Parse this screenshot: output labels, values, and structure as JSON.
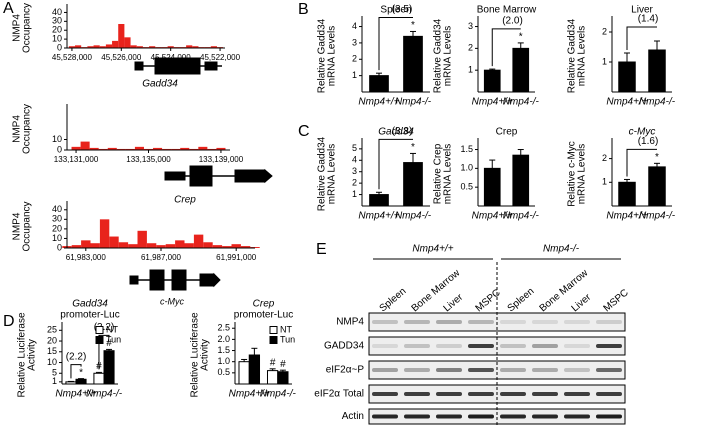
{
  "panel_labels": [
    "A",
    "B",
    "C",
    "D",
    "E"
  ],
  "genes": [
    "Gadd34",
    "Crep",
    "c-Myc"
  ],
  "chart_data": [
    {
      "type": "track",
      "ylabel": [
        "NMP4",
        "Occupancy"
      ],
      "x": [
        45528000,
        45527750,
        45527500,
        45527250,
        45527000,
        45526750,
        45526500,
        45526250,
        45526000,
        45525750,
        45525500,
        45525250,
        45525000,
        45524750,
        45524500,
        45524250,
        45524000,
        45523750,
        45523500,
        45523250,
        45523000,
        45522750,
        45522500,
        45522250,
        45522000
      ],
      "values": [
        2,
        3,
        1,
        2,
        3,
        2,
        4,
        8,
        27,
        12,
        3,
        2,
        1,
        2,
        1,
        1,
        2,
        1,
        1,
        3,
        2,
        1,
        1,
        2,
        1
      ],
      "color": "#e8231c",
      "xlim": [
        45528200,
        45521800
      ],
      "ylim": [
        0,
        45
      ],
      "yticks": [
        0,
        10,
        20,
        30,
        40
      ],
      "xticks": [
        {
          "value": 45528000,
          "label": "45,528,000"
        },
        {
          "value": 45526000,
          "label": "45,526,000"
        },
        {
          "value": 45524000,
          "label": "45,524,000"
        },
        {
          "value": 45522000,
          "label": "45,522,000"
        }
      ]
    },
    {
      "type": "track",
      "ylabel": [
        "NMP4",
        "Occupancy"
      ],
      "x": [
        133131000,
        133131500,
        133132000,
        133132500,
        133133000,
        133133500,
        133134000,
        133134500,
        133135000,
        133135500,
        133136000,
        133136500,
        133137000,
        133137500,
        133138000,
        133138500,
        133139000
      ],
      "values": [
        3,
        8,
        2,
        1,
        2,
        1,
        1,
        3,
        1,
        2,
        1,
        1,
        2,
        1,
        3,
        1,
        2
      ],
      "color": "#e8231c",
      "xlim": [
        133130500,
        133139500
      ],
      "ylim": [
        0,
        40
      ],
      "yticks": [
        0,
        10
      ],
      "xticks": [
        {
          "value": 133131000,
          "label": "133,131,000"
        },
        {
          "value": 133135000,
          "label": "133,135,000"
        },
        {
          "value": 133139000,
          "label": "133,139,000"
        }
      ]
    },
    {
      "type": "track",
      "ylabel": [
        "NMP4",
        "Occupancy"
      ],
      "x": [
        61982000,
        61982500,
        61983000,
        61983500,
        61984000,
        61984500,
        61985000,
        61985500,
        61986000,
        61986500,
        61987000,
        61987500,
        61988000,
        61988500,
        61989000,
        61989500,
        61990000,
        61990500,
        61991000,
        61991500,
        61992000
      ],
      "values": [
        2,
        3,
        8,
        5,
        30,
        12,
        6,
        4,
        18,
        5,
        3,
        4,
        8,
        5,
        14,
        6,
        3,
        2,
        4,
        2,
        1
      ],
      "color": "#e8231c",
      "xlim": [
        61982000,
        61992000
      ],
      "ylim": [
        0,
        45
      ],
      "yticks": [
        0,
        10,
        20,
        30,
        40
      ],
      "xticks": [
        {
          "value": 61983000,
          "label": "61,983,000"
        },
        {
          "value": 61987000,
          "label": "61,987,000"
        },
        {
          "value": 61991000,
          "label": "61,991,000"
        }
      ]
    },
    {
      "type": "bar",
      "title": "Spleen",
      "ylabel": [
        "Relative Gadd34",
        "mRNA Levels"
      ],
      "categories": [
        "Nmp4+/+",
        "Nmp4-/-"
      ],
      "series": [
        {
          "color": "#000000",
          "values": [
            1.0,
            3.4
          ],
          "errors": [
            0.15,
            0.3
          ],
          "markers": [
            null,
            "*"
          ]
        }
      ],
      "bracket": "(3.5)",
      "ylim": [
        0,
        4.4
      ],
      "yticks": [
        1,
        2,
        3,
        4
      ]
    },
    {
      "type": "bar",
      "title": "Bone Marrow",
      "ylabel": [
        "Relative Gadd34",
        "mRNA Levels"
      ],
      "categories": [
        "Nmp4+/+",
        "Nmp4-/-"
      ],
      "series": [
        {
          "color": "#000000",
          "values": [
            1.0,
            2.0
          ],
          "errors": [
            0.05,
            0.25
          ],
          "markers": [
            null,
            "*"
          ]
        }
      ],
      "bracket": "(2.0)",
      "ylim": [
        0,
        3.3
      ],
      "yticks": [
        1,
        2,
        3
      ]
    },
    {
      "type": "bar",
      "title": "Liver",
      "ylabel": [
        "Relative Gadd34",
        "mRNA Levels"
      ],
      "categories": [
        "Nmp4+/+",
        "Nmp4-/-"
      ],
      "series": [
        {
          "color": "#000000",
          "values": [
            1.0,
            1.4
          ],
          "errors": [
            0.3,
            0.3
          ]
        }
      ],
      "bracket": "(1.4)",
      "ylim": [
        0,
        2.4
      ],
      "yticks": [
        1,
        2
      ]
    },
    {
      "type": "bar",
      "title": "Gadd34",
      "ylabel": [
        "Relative Gadd34",
        "mRNA Levels"
      ],
      "categories": [
        "Nmp4+/+",
        "Nmp4-/-"
      ],
      "series": [
        {
          "color": "#000000",
          "values": [
            1.0,
            3.8
          ],
          "errors": [
            0.2,
            0.8
          ],
          "markers": [
            null,
            "*"
          ]
        }
      ],
      "bracket": "(3.8)",
      "ylim": [
        0,
        5.6
      ],
      "yticks": [
        1,
        2,
        3,
        4,
        5
      ]
    },
    {
      "type": "bar",
      "title": "Crep",
      "ylabel": [
        "Relative Crep",
        "mRNA Levels"
      ],
      "categories": [
        "Nmp4+/+",
        "Nmp4-/-"
      ],
      "series": [
        {
          "color": "#000000",
          "values": [
            1.0,
            1.35
          ],
          "errors": [
            0.22,
            0.15
          ]
        }
      ],
      "ylim": [
        0,
        1.7
      ],
      "yticks": [
        {
          "value": 0.5,
          "label": "0.5"
        },
        {
          "value": 1,
          "label": "1.0"
        },
        {
          "value": 1.5,
          "label": "1.5"
        }
      ]
    },
    {
      "type": "bar",
      "title": "c-Myc",
      "ylabel": [
        "Relative c-Myc",
        "mRNA Levels"
      ],
      "categories": [
        "Nmp4+/+",
        "Nmp4-/-"
      ],
      "series": [
        {
          "color": "#000000",
          "values": [
            1.0,
            1.65
          ],
          "errors": [
            0.12,
            0.15
          ],
          "markers": [
            null,
            "*"
          ]
        }
      ],
      "bracket": "(1.6)",
      "ylim": [
        0,
        2.7
      ],
      "yticks": [
        1,
        2
      ]
    },
    {
      "type": "bar",
      "title": [
        "Gadd34",
        "promoter-Luc"
      ],
      "ylabel": [
        "Relative Luciferase",
        "Activity"
      ],
      "categories": [
        "Nmp4+/+",
        "Nmp4-/-"
      ],
      "series": [
        {
          "name": "NT",
          "color": "#ffffff",
          "values": [
            1.0,
            5.0
          ],
          "errors": [
            0.2,
            0.4
          ],
          "markers": [
            null,
            "#"
          ]
        },
        {
          "name": "Tun",
          "color": "#000000",
          "values": [
            2.2,
            15.5
          ],
          "errors": [
            0.3,
            0.6
          ],
          "markers": [
            "*",
            "#"
          ]
        }
      ],
      "group_labels": [
        "(2.2)",
        "(3.2)"
      ],
      "ylim": [
        0,
        27
      ],
      "yticks": [
        1,
        5,
        10,
        15,
        20,
        25
      ]
    },
    {
      "type": "bar",
      "title": [
        "Crep",
        "promoter-Luc"
      ],
      "ylabel": [
        "Relative Luciferase",
        "Activity"
      ],
      "categories": [
        "Nmp4+/+",
        "Nmp4-/-"
      ],
      "series": [
        {
          "name": "NT",
          "color": "#ffffff",
          "values": [
            1.0,
            0.6
          ],
          "errors": [
            0.1,
            0.08
          ],
          "markers": [
            null,
            "#"
          ]
        },
        {
          "name": "Tun",
          "color": "#000000",
          "values": [
            1.3,
            0.55
          ],
          "errors": [
            0.3,
            0.07
          ],
          "markers": [
            null,
            "#"
          ]
        }
      ],
      "ylim": [
        0,
        2.6
      ],
      "yticks": [
        {
          "value": 0.5,
          "label": "0.5"
        },
        {
          "value": 1,
          "label": "1.0"
        },
        {
          "value": 1.5,
          "label": "1.5"
        },
        {
          "value": 2,
          "label": "2.0"
        },
        {
          "value": 2.5,
          "label": "2.5"
        }
      ]
    }
  ],
  "blot": {
    "groups": [
      "Nmp4+/+",
      "Nmp4-/-"
    ],
    "lanes": [
      "Spleen",
      "Bone Marrow",
      "Liver",
      "MSPC",
      "Spleen",
      "Bone Marrow",
      "Liver",
      "MSPC"
    ],
    "rows": [
      "NMP4",
      "GADD34",
      "eIF2α~P",
      "eIF2α Total",
      "Actin"
    ]
  }
}
